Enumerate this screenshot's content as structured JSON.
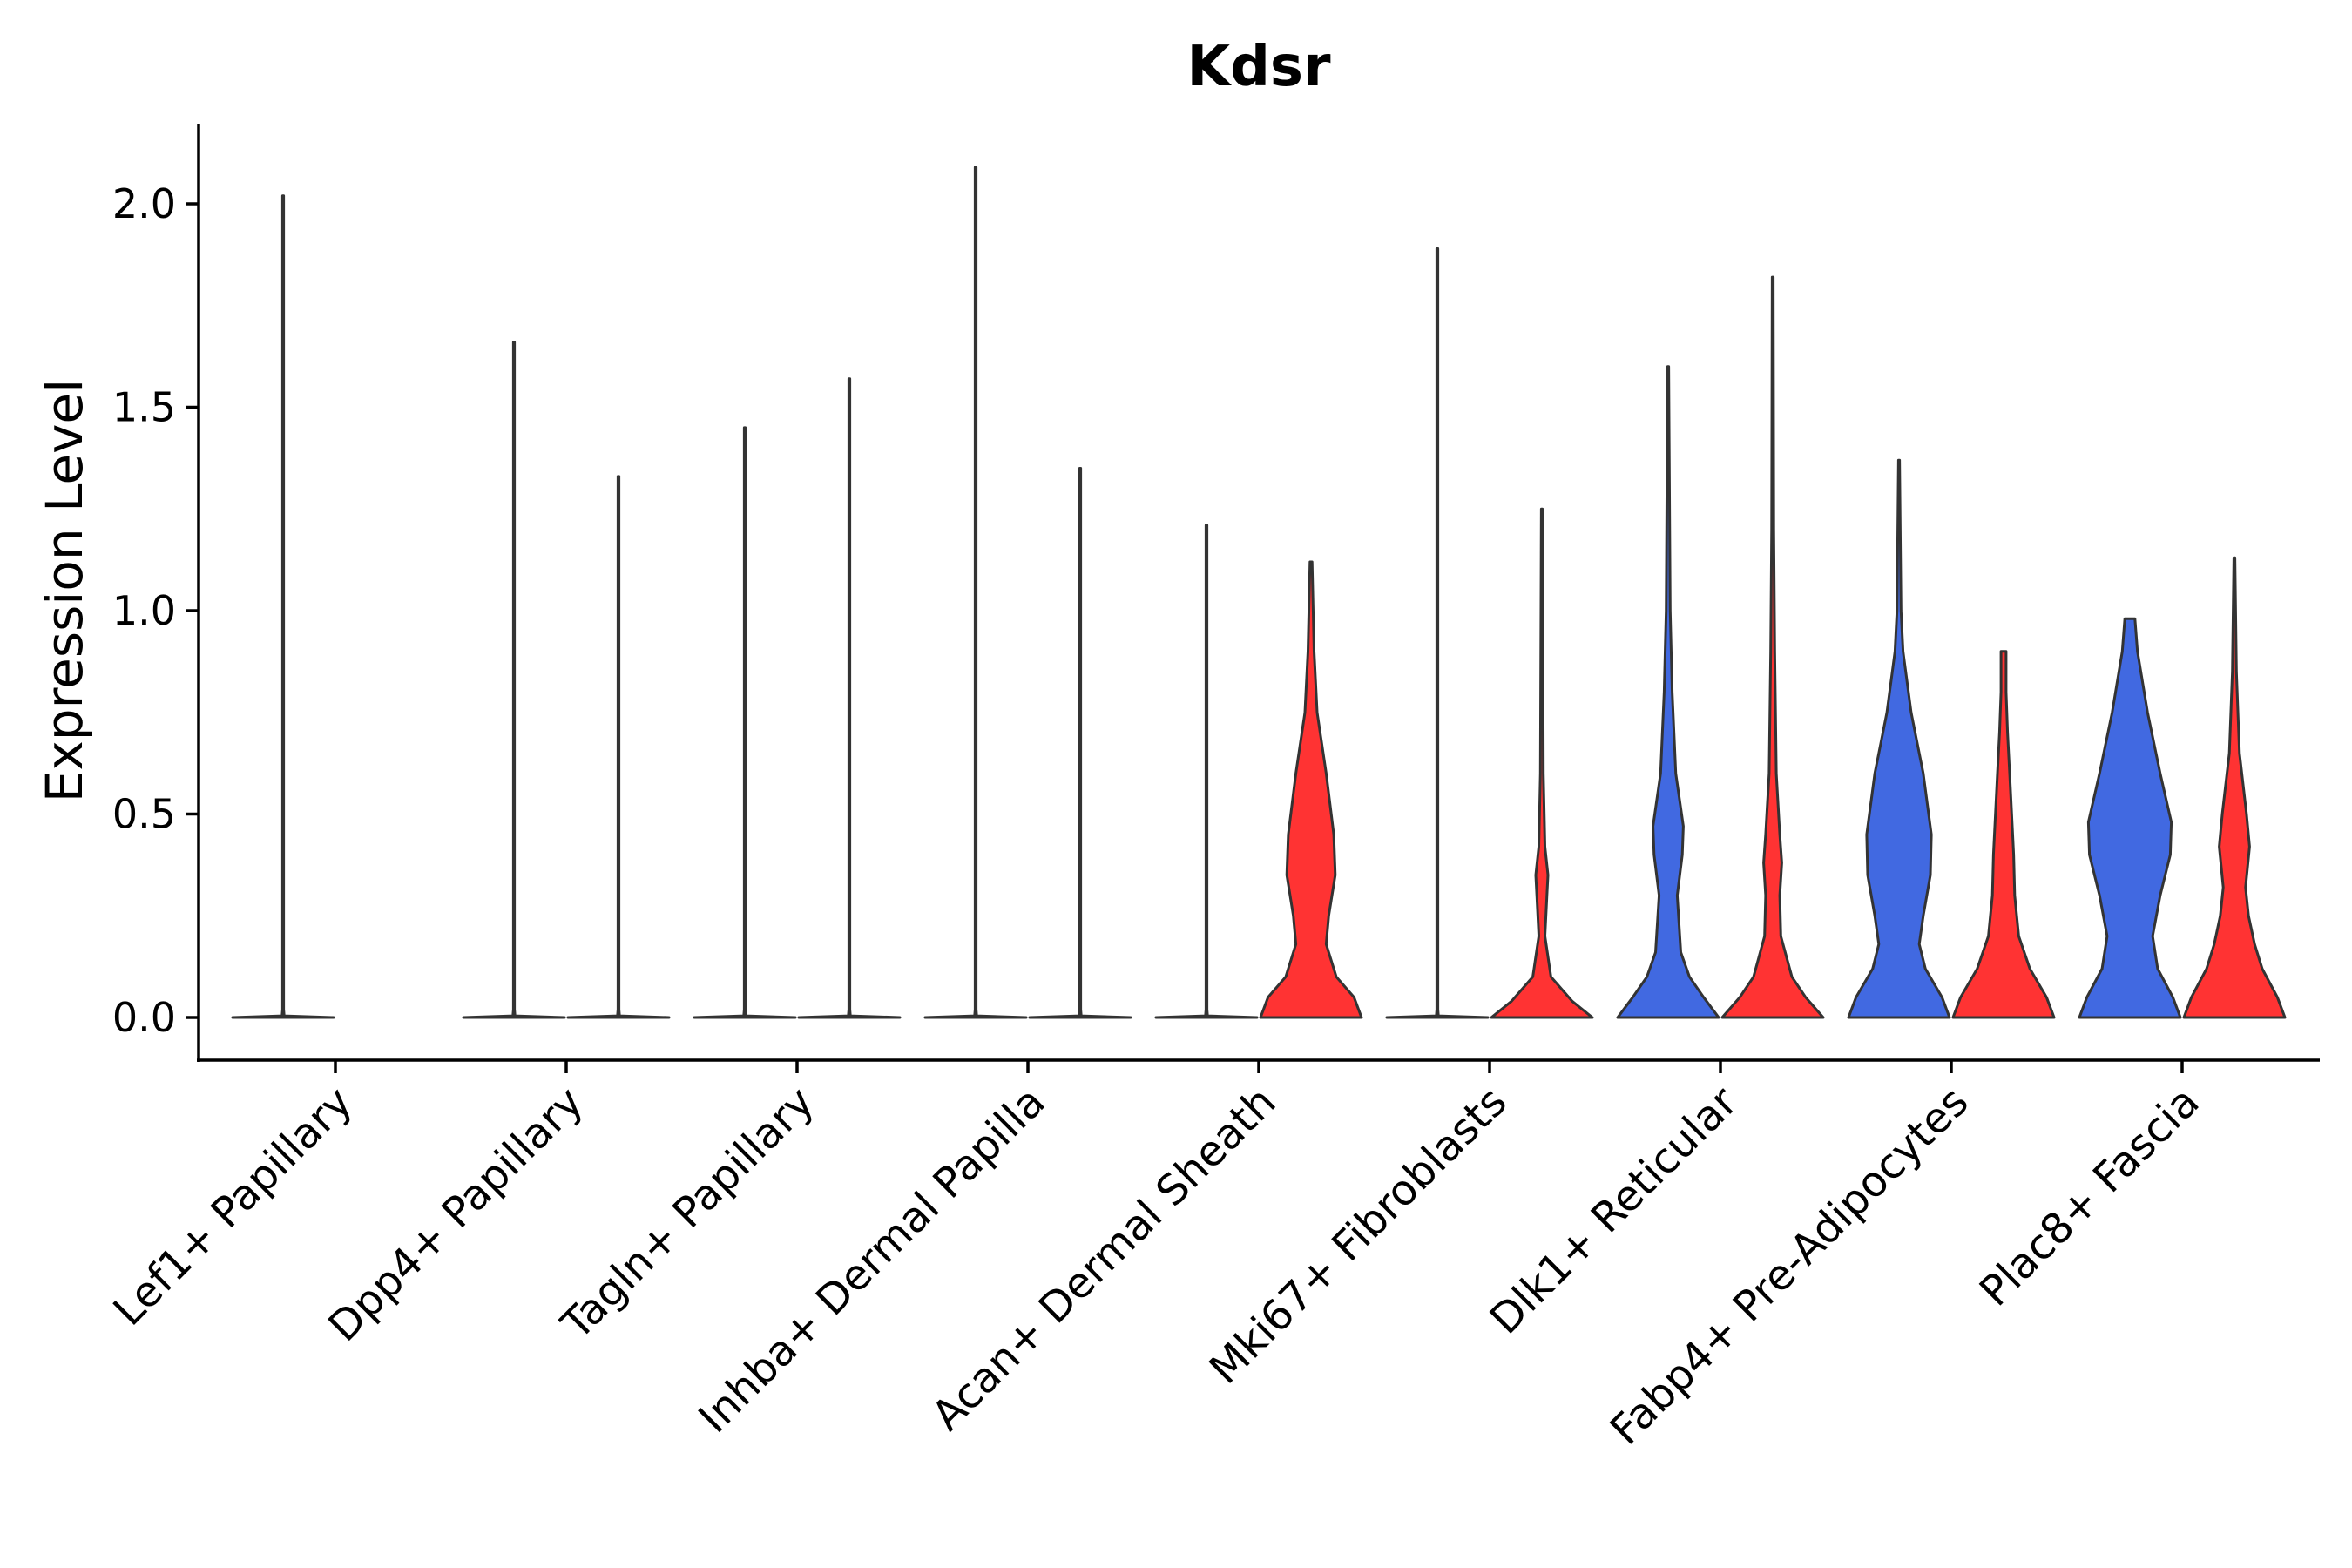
{
  "chart_data": {
    "type": "violin",
    "title": "Kdsr",
    "xlabel": "",
    "ylabel": "Expression Level",
    "ylim": [
      -0.1,
      2.2
    ],
    "yticks": [
      "0.0",
      "0.5",
      "1.0",
      "1.5",
      "2.0"
    ],
    "legend": "none",
    "colors": {
      "group_a": "#4169e1",
      "group_b": "#ff3333",
      "outline": "#333333"
    },
    "categories": [
      "Lef1+ Papillary",
      "Dpp4+ Papillary",
      "Tagln+ Papillary",
      "Inhba+ Dermal Papilla",
      "Acan+ Dermal Sheath",
      "Mki67+ Fibroblasts",
      "Dlk1+ Reticular",
      "Fabp4+ Pre-Adipocytes",
      "Plac8+ Fascia"
    ],
    "violins": [
      {
        "category": 0,
        "side": "left",
        "group": "a",
        "max": 2.02,
        "profile": [
          [
            0,
            1
          ],
          [
            0.004,
            0.02
          ],
          [
            0.02,
            0.01
          ],
          [
            2.02,
            0.01
          ]
        ]
      },
      {
        "category": 0,
        "side": "right",
        "group": "b",
        "max": 0.0,
        "profile": []
      },
      {
        "category": 1,
        "side": "left",
        "group": "a",
        "max": 1.66,
        "profile": [
          [
            0,
            1
          ],
          [
            0.004,
            0.02
          ],
          [
            0.02,
            0.01
          ],
          [
            1.66,
            0.01
          ]
        ]
      },
      {
        "category": 1,
        "side": "right",
        "group": "b",
        "max": 1.33,
        "profile": [
          [
            0,
            1
          ],
          [
            0.004,
            0.02
          ],
          [
            0.02,
            0.01
          ],
          [
            1.33,
            0.01
          ]
        ]
      },
      {
        "category": 2,
        "side": "left",
        "group": "a",
        "max": 1.45,
        "profile": [
          [
            0,
            1
          ],
          [
            0.004,
            0.02
          ],
          [
            0.02,
            0.01
          ],
          [
            1.45,
            0.01
          ]
        ]
      },
      {
        "category": 2,
        "side": "right",
        "group": "b",
        "max": 1.57,
        "profile": [
          [
            0,
            1
          ],
          [
            0.004,
            0.02
          ],
          [
            0.02,
            0.01
          ],
          [
            1.57,
            0.01
          ]
        ]
      },
      {
        "category": 3,
        "side": "left",
        "group": "a",
        "max": 2.09,
        "profile": [
          [
            0,
            1
          ],
          [
            0.004,
            0.02
          ],
          [
            0.02,
            0.01
          ],
          [
            2.09,
            0.01
          ]
        ]
      },
      {
        "category": 3,
        "side": "right",
        "group": "b",
        "max": 1.35,
        "profile": [
          [
            0,
            1
          ],
          [
            0.004,
            0.02
          ],
          [
            0.02,
            0.01
          ],
          [
            1.35,
            0.01
          ]
        ]
      },
      {
        "category": 4,
        "side": "left",
        "group": "a",
        "max": 1.21,
        "profile": [
          [
            0,
            1
          ],
          [
            0.004,
            0.02
          ],
          [
            0.02,
            0.01
          ],
          [
            1.21,
            0.01
          ]
        ]
      },
      {
        "category": 4,
        "side": "right",
        "group": "b",
        "max": 1.12,
        "profile": [
          [
            0,
            1
          ],
          [
            0.05,
            0.85
          ],
          [
            0.1,
            0.5
          ],
          [
            0.18,
            0.3
          ],
          [
            0.25,
            0.35
          ],
          [
            0.35,
            0.48
          ],
          [
            0.45,
            0.45
          ],
          [
            0.6,
            0.3
          ],
          [
            0.75,
            0.12
          ],
          [
            0.9,
            0.06
          ],
          [
            1.12,
            0.02
          ]
        ]
      },
      {
        "category": 5,
        "side": "left",
        "group": "a",
        "max": 1.89,
        "profile": [
          [
            0,
            1
          ],
          [
            0.004,
            0.02
          ],
          [
            0.02,
            0.01
          ],
          [
            1.89,
            0.01
          ]
        ]
      },
      {
        "category": 5,
        "side": "right",
        "group": "b",
        "max": 1.25,
        "profile": [
          [
            0,
            1
          ],
          [
            0.04,
            0.6
          ],
          [
            0.1,
            0.18
          ],
          [
            0.2,
            0.06
          ],
          [
            0.3,
            0.1
          ],
          [
            0.35,
            0.12
          ],
          [
            0.42,
            0.06
          ],
          [
            0.6,
            0.03
          ],
          [
            0.9,
            0.02
          ],
          [
            1.25,
            0.01
          ]
        ]
      },
      {
        "category": 6,
        "side": "left",
        "group": "a",
        "max": 1.6,
        "profile": [
          [
            0,
            1
          ],
          [
            0.05,
            0.7
          ],
          [
            0.1,
            0.42
          ],
          [
            0.16,
            0.25
          ],
          [
            0.3,
            0.18
          ],
          [
            0.4,
            0.28
          ],
          [
            0.47,
            0.3
          ],
          [
            0.6,
            0.15
          ],
          [
            0.8,
            0.08
          ],
          [
            1.0,
            0.04
          ],
          [
            1.6,
            0.01
          ]
        ]
      },
      {
        "category": 6,
        "side": "right",
        "group": "b",
        "max": 1.82,
        "profile": [
          [
            0,
            1
          ],
          [
            0.05,
            0.65
          ],
          [
            0.1,
            0.38
          ],
          [
            0.2,
            0.16
          ],
          [
            0.3,
            0.14
          ],
          [
            0.38,
            0.18
          ],
          [
            0.45,
            0.14
          ],
          [
            0.6,
            0.07
          ],
          [
            0.9,
            0.04
          ],
          [
            1.2,
            0.02
          ],
          [
            1.82,
            0.01
          ]
        ]
      },
      {
        "category": 7,
        "side": "left",
        "group": "a",
        "max": 1.37,
        "profile": [
          [
            0,
            1
          ],
          [
            0.05,
            0.85
          ],
          [
            0.12,
            0.52
          ],
          [
            0.18,
            0.4
          ],
          [
            0.25,
            0.48
          ],
          [
            0.35,
            0.62
          ],
          [
            0.45,
            0.64
          ],
          [
            0.6,
            0.48
          ],
          [
            0.75,
            0.24
          ],
          [
            0.9,
            0.08
          ],
          [
            1.0,
            0.04
          ],
          [
            1.37,
            0.01
          ]
        ]
      },
      {
        "category": 7,
        "side": "right",
        "group": "b",
        "max": 0.9,
        "profile": [
          [
            0,
            1
          ],
          [
            0.05,
            0.85
          ],
          [
            0.12,
            0.52
          ],
          [
            0.2,
            0.3
          ],
          [
            0.3,
            0.22
          ],
          [
            0.4,
            0.2
          ],
          [
            0.5,
            0.16
          ],
          [
            0.6,
            0.12
          ],
          [
            0.7,
            0.08
          ],
          [
            0.8,
            0.05
          ],
          [
            0.9,
            0.05
          ]
        ]
      },
      {
        "category": 8,
        "side": "left",
        "group": "a",
        "max": 0.98,
        "profile": [
          [
            0,
            1
          ],
          [
            0.05,
            0.85
          ],
          [
            0.12,
            0.55
          ],
          [
            0.2,
            0.45
          ],
          [
            0.3,
            0.6
          ],
          [
            0.4,
            0.8
          ],
          [
            0.48,
            0.82
          ],
          [
            0.6,
            0.6
          ],
          [
            0.75,
            0.35
          ],
          [
            0.9,
            0.15
          ],
          [
            0.98,
            0.1
          ]
        ]
      },
      {
        "category": 8,
        "side": "right",
        "group": "b",
        "max": 1.13,
        "profile": [
          [
            0,
            1
          ],
          [
            0.05,
            0.85
          ],
          [
            0.12,
            0.55
          ],
          [
            0.18,
            0.4
          ],
          [
            0.25,
            0.28
          ],
          [
            0.32,
            0.22
          ],
          [
            0.42,
            0.3
          ],
          [
            0.5,
            0.24
          ],
          [
            0.65,
            0.1
          ],
          [
            0.85,
            0.04
          ],
          [
            1.13,
            0.01
          ]
        ]
      }
    ]
  }
}
